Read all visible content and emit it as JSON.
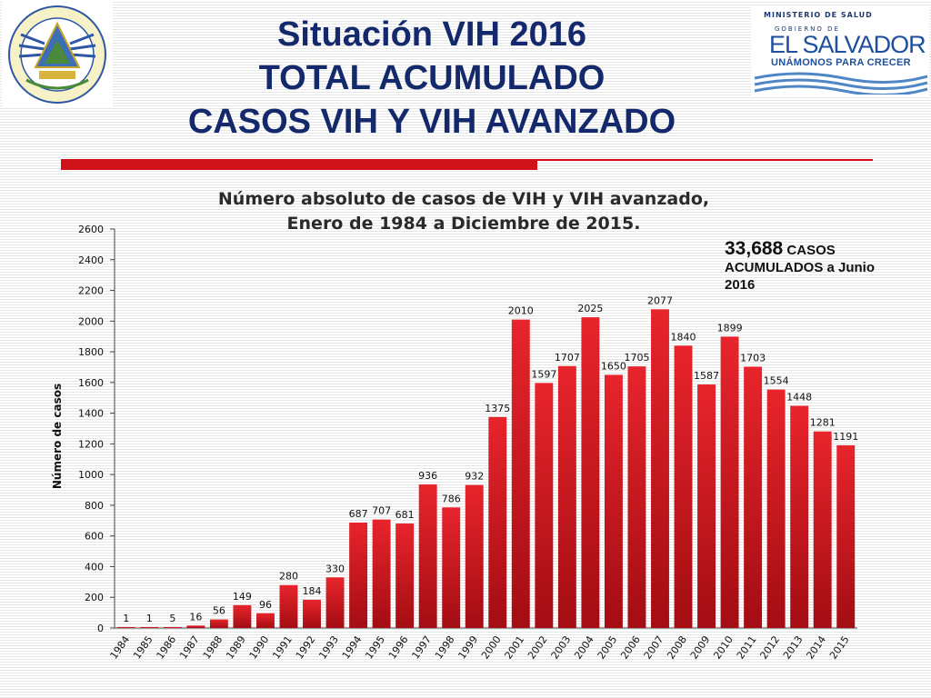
{
  "header": {
    "title_lines": [
      "Situación VIH 2016",
      "TOTAL ACUMULADO",
      "CASOS VIH Y VIH AVANZADO"
    ]
  },
  "seal": {
    "ring_text": "REPUBLICA DE EL SALVADOR EN LA AMERICA CENTRAL"
  },
  "gov_logo": {
    "ministry": "MINISTERIO DE SALUD",
    "gobierno": "GOBIERNO DE",
    "country": "EL SALVADOR",
    "slogan": "UNÁMONOS PARA CRECER"
  },
  "annotation": {
    "total": "33,688",
    "text_line1": "CASOS",
    "text_line2": "ACUMULADOS a Junio",
    "text_line3": "2016"
  },
  "colors": {
    "title": "#14296b",
    "bar_top": "#e8242c",
    "bar_bottom": "#a30d13",
    "accent_red": "#d0121b"
  },
  "chart_data": {
    "type": "bar",
    "title_lines": [
      "Número absoluto de casos de VIH y VIH avanzado,",
      "Enero de 1984 a Diciembre de 2015."
    ],
    "xlabel": "",
    "ylabel": "Número de casos",
    "ylim": [
      0,
      2600
    ],
    "yticks": [
      0,
      200,
      400,
      600,
      800,
      1000,
      1200,
      1400,
      1600,
      1800,
      2000,
      2200,
      2400,
      2600
    ],
    "grid": false,
    "legend": "none",
    "categories": [
      "1984",
      "1985",
      "1986",
      "1987",
      "1988",
      "1989",
      "1990",
      "1991",
      "1992",
      "1993",
      "1994",
      "1995",
      "1996",
      "1997",
      "1998",
      "1999",
      "2000",
      "2001",
      "2002",
      "2003",
      "2004",
      "2005",
      "2006",
      "2007",
      "2008",
      "2009",
      "2010",
      "2011",
      "2012",
      "2013",
      "2014",
      "2015"
    ],
    "values": [
      1,
      1,
      5,
      16,
      56,
      149,
      96,
      280,
      184,
      330,
      687,
      707,
      681,
      936,
      786,
      932,
      1375,
      2010,
      1597,
      1707,
      2025,
      1650,
      1705,
      2077,
      1840,
      1587,
      1899,
      1703,
      1554,
      1448,
      1281,
      1191
    ]
  }
}
